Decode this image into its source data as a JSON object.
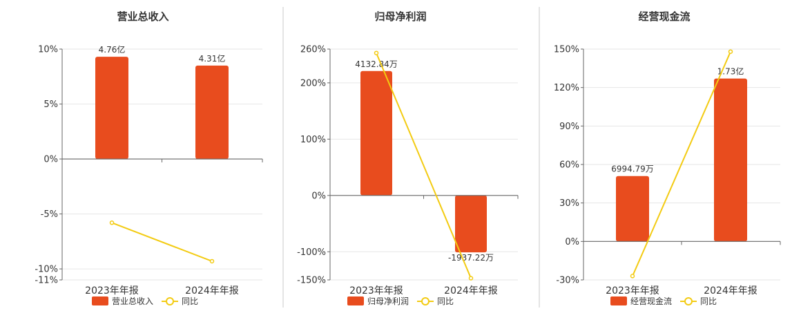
{
  "colors": {
    "bar": "#E84C1E",
    "line": "#F3CB12",
    "grid": "#e6e6e6",
    "axis": "#666666",
    "divider": "#c8c8c8",
    "text": "#333333"
  },
  "chart_data": [
    {
      "type": "bar",
      "title": "营业总收入",
      "categories": [
        "2023年年报",
        "2024年年报"
      ],
      "series": [
        {
          "name": "营业总收入",
          "kind": "bar",
          "values": [
            9.3,
            8.5
          ],
          "labels": [
            "4.76亿",
            "4.31亿"
          ]
        },
        {
          "name": "同比",
          "kind": "line",
          "values": [
            -5.8,
            -9.3
          ]
        }
      ],
      "ylim": [
        -11,
        10
      ],
      "yticks": [
        -11,
        -10,
        -5,
        0,
        5,
        10
      ],
      "ytick_labels": [
        "-11%",
        "-10%",
        "-5%",
        "0%",
        "5%",
        "10%"
      ],
      "grid": true,
      "legend": "bottom"
    },
    {
      "type": "bar",
      "title": "归母净利润",
      "categories": [
        "2023年年报",
        "2024年年报"
      ],
      "series": [
        {
          "name": "归母净利润",
          "kind": "bar",
          "values": [
            221,
            -101
          ],
          "labels": [
            "4132.84万",
            "-1937.22万"
          ]
        },
        {
          "name": "同比",
          "kind": "line",
          "values": [
            253,
            -147
          ]
        }
      ],
      "ylim": [
        -150,
        260
      ],
      "yticks": [
        -150,
        -100,
        0,
        100,
        200,
        260
      ],
      "ytick_labels": [
        "-150%",
        "-100%",
        "0%",
        "100%",
        "200%",
        "260%"
      ],
      "grid": true,
      "legend": "bottom"
    },
    {
      "type": "bar",
      "title": "经营现金流",
      "categories": [
        "2023年年报",
        "2024年年报"
      ],
      "series": [
        {
          "name": "经营现金流",
          "kind": "bar",
          "values": [
            51,
            127
          ],
          "labels": [
            "6994.79万",
            "1.73亿"
          ]
        },
        {
          "name": "同比",
          "kind": "line",
          "values": [
            -27,
            148
          ]
        }
      ],
      "ylim": [
        -30,
        150
      ],
      "yticks": [
        -30,
        0,
        30,
        60,
        90,
        120,
        150
      ],
      "ytick_labels": [
        "-30%",
        "0%",
        "30%",
        "60%",
        "90%",
        "120%",
        "150%"
      ],
      "grid": true,
      "legend": "bottom"
    }
  ]
}
